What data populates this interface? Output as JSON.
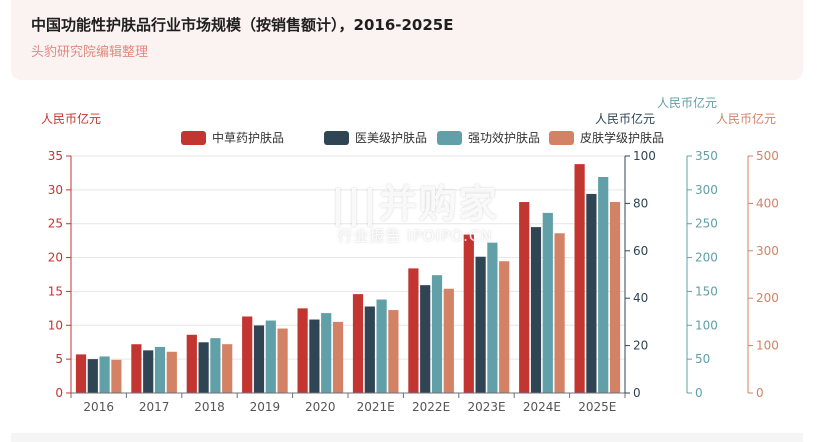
{
  "header": {
    "title": "中国功能性护肤品行业市场规模（按销售额计），2016-2025E",
    "subtitle": "头豹研究院编辑整理"
  },
  "watermark": {
    "main": "|||并购家",
    "sub": "行业报告 IPOIPO.CN"
  },
  "chart_data": {
    "type": "bar",
    "categories": [
      "2016",
      "2017",
      "2018",
      "2019",
      "2020",
      "2021E",
      "2022E",
      "2023E",
      "2024E",
      "2025E"
    ],
    "legend_position": "top",
    "grid": true,
    "axes": [
      {
        "id": "a1",
        "label": "人民币亿元",
        "min": 0,
        "max": 35,
        "ticks": [
          0,
          5,
          10,
          15,
          20,
          25,
          30,
          35
        ],
        "color": "#c23531",
        "position": "left"
      },
      {
        "id": "a2",
        "label": "人民币亿元",
        "min": 0,
        "max": 100,
        "ticks": [
          0,
          20,
          40,
          60,
          80,
          100
        ],
        "color": "#2f4554",
        "position": "right"
      },
      {
        "id": "a3",
        "label": "人民币亿元",
        "min": 0,
        "max": 350,
        "ticks": [
          0,
          50,
          100,
          150,
          200,
          250,
          300,
          350
        ],
        "color": "#61a0a8",
        "position": "right"
      },
      {
        "id": "a4",
        "label": "人民币亿元",
        "min": 0,
        "max": 500,
        "ticks": [
          0,
          100,
          200,
          300,
          400,
          500
        ],
        "color": "#d48265",
        "position": "right"
      }
    ],
    "series": [
      {
        "name": "中草药护肤品",
        "axis": "a1",
        "color": "#c23531",
        "values": [
          5.7,
          7.2,
          8.6,
          11.3,
          12.5,
          14.6,
          18.4,
          23.4,
          28.2,
          33.8
        ]
      },
      {
        "name": "医美级护肤品",
        "axis": "a2",
        "color": "#2f4554",
        "values": [
          14.3,
          18.0,
          21.4,
          28.5,
          31.0,
          36.5,
          45.5,
          57.5,
          70.0,
          84.0
        ]
      },
      {
        "name": "强功效护肤品",
        "axis": "a3",
        "color": "#61a0a8",
        "values": [
          54,
          68,
          81,
          107,
          118,
          138,
          174,
          222,
          266,
          319
        ]
      },
      {
        "name": "皮肤学级护肤品",
        "axis": "a4",
        "color": "#d48265",
        "values": [
          70,
          87,
          103,
          136,
          150,
          175,
          220,
          278,
          337,
          403
        ]
      }
    ]
  }
}
